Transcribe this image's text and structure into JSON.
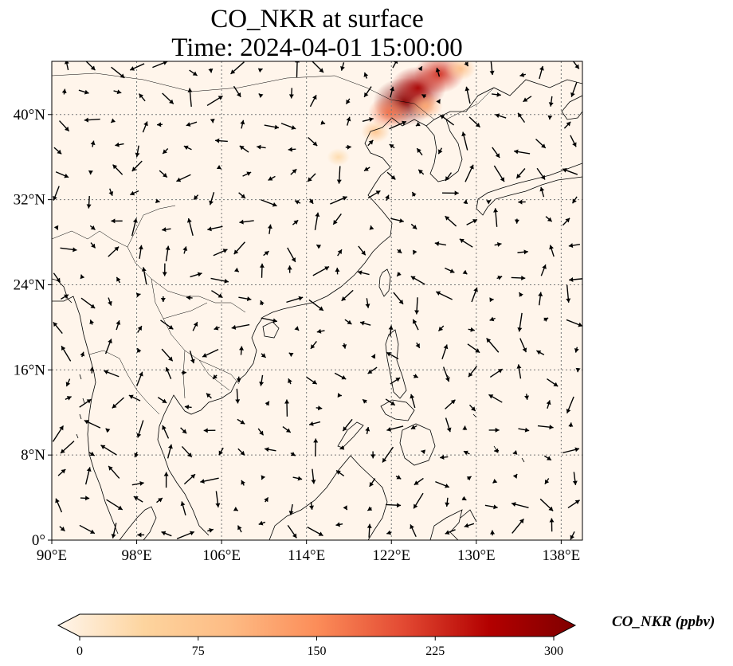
{
  "title": {
    "line1": "CO_NKR at surface",
    "line2": "Time: 2024-04-01 15:00:00"
  },
  "map": {
    "projection": "PlateCarree",
    "lon_range": [
      90,
      140
    ],
    "lat_range": [
      0,
      45
    ],
    "lon_ticks": [
      {
        "value": 90,
        "label": "90°E"
      },
      {
        "value": 98,
        "label": "98°E"
      },
      {
        "value": 106,
        "label": "106°E"
      },
      {
        "value": 114,
        "label": "114°E"
      },
      {
        "value": 122,
        "label": "122°E"
      },
      {
        "value": 130,
        "label": "130°E"
      },
      {
        "value": 138,
        "label": "138°E"
      }
    ],
    "lat_ticks": [
      {
        "value": 0,
        "label": "0°"
      },
      {
        "value": 8,
        "label": "8°N"
      },
      {
        "value": 16,
        "label": "16°N"
      },
      {
        "value": 24,
        "label": "24°N"
      },
      {
        "value": 32,
        "label": "32°N"
      },
      {
        "value": 40,
        "label": "40°N"
      }
    ],
    "gridlines": true,
    "background_color": "#fff5eb",
    "wind_vectors": "shown",
    "coastlines": "shown",
    "country_borders": "shown"
  },
  "colorbar": {
    "label": "CO_NKR (ppbv)",
    "min": 0,
    "max": 300,
    "ticks": [
      "0",
      "75",
      "150",
      "225",
      "300"
    ],
    "colormap": "OrRd",
    "extend": "both",
    "colors": [
      "#fff5eb",
      "#fdd49e",
      "#fdbb84",
      "#fc8d59",
      "#e34a33",
      "#b30000",
      "#7f0000"
    ]
  },
  "hotspots": [
    {
      "lon": 123.2,
      "lat": 41.2,
      "value": 300
    },
    {
      "lon": 124.5,
      "lat": 42.5,
      "value": 260
    },
    {
      "lon": 126.5,
      "lat": 43.8,
      "value": 220
    },
    {
      "lon": 121.8,
      "lat": 40.2,
      "value": 170
    },
    {
      "lon": 125.2,
      "lat": 40.8,
      "value": 120
    },
    {
      "lon": 120.5,
      "lat": 38.4,
      "value": 80
    },
    {
      "lon": 117.0,
      "lat": 36.0,
      "value": 40
    },
    {
      "lon": 128.5,
      "lat": 44.3,
      "value": 90
    }
  ]
}
